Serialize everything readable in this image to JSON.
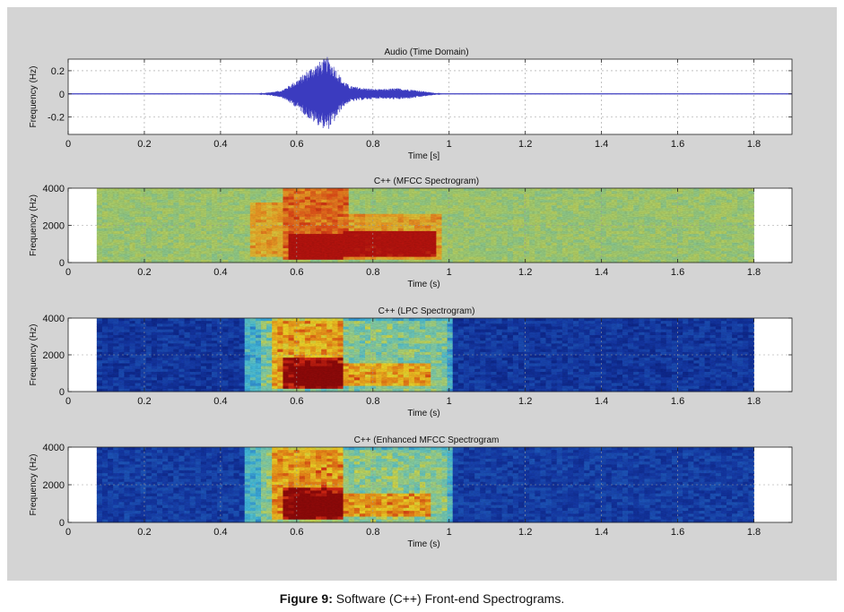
{
  "figure": {
    "caption_label": "Figure 9:",
    "caption_text": " Software (C++) Front-end Spectrograms."
  },
  "chart_data": [
    {
      "type": "line",
      "title": "Audio (Time Domain)",
      "xlabel": "Time [s]",
      "ylabel": "Frequency (Hz)",
      "xlim": [
        0,
        1.9
      ],
      "ylim": [
        -0.35,
        0.3
      ],
      "xticks": [
        "0",
        "0.2",
        "0.4",
        "0.6",
        "0.8",
        "1",
        "1.2",
        "1.4",
        "1.6",
        "1.8"
      ],
      "yticks": [
        "0.2",
        "0",
        "-0.2"
      ],
      "grid": true,
      "series": [
        {
          "color": "#3b3bbf",
          "envelope": [
            {
              "t": 0.5,
              "amp": 0.0
            },
            {
              "t": 0.52,
              "amp": 0.01
            },
            {
              "t": 0.56,
              "amp": 0.03
            },
            {
              "t": 0.6,
              "amp": 0.12
            },
            {
              "t": 0.62,
              "amp": 0.18
            },
            {
              "t": 0.64,
              "amp": 0.24
            },
            {
              "t": 0.66,
              "amp": 0.28
            },
            {
              "t": 0.68,
              "amp": 0.32
            },
            {
              "t": 0.7,
              "amp": 0.24
            },
            {
              "t": 0.72,
              "amp": 0.12
            },
            {
              "t": 0.74,
              "amp": 0.07
            },
            {
              "t": 0.78,
              "amp": 0.05
            },
            {
              "t": 0.82,
              "amp": 0.04
            },
            {
              "t": 0.86,
              "amp": 0.05
            },
            {
              "t": 0.9,
              "amp": 0.04
            },
            {
              "t": 0.94,
              "amp": 0.02
            },
            {
              "t": 0.98,
              "amp": 0.0
            }
          ]
        }
      ]
    },
    {
      "type": "heatmap",
      "title": "C++ (MFCC Spectrogram)",
      "xlabel": "Time (s)",
      "ylabel": "Frequency (Hz)",
      "xlim": [
        0,
        1.9
      ],
      "ylim": [
        0,
        4000
      ],
      "data_range": [
        0.075,
        1.8
      ],
      "xticks": [
        "0",
        "0.2",
        "0.4",
        "0.6",
        "0.8",
        "1",
        "1.2",
        "1.4",
        "1.6",
        "1.8"
      ],
      "yticks": [
        "4000",
        "2000",
        "0"
      ],
      "colormap": "mfcc",
      "background_level": 0.45,
      "energy_regions": [
        {
          "t0": 0.48,
          "t1": 0.56,
          "f0": 300,
          "f1": 3200,
          "level": 0.25
        },
        {
          "t0": 0.57,
          "t1": 0.73,
          "f0": 100,
          "f1": 4000,
          "level": 0.35
        },
        {
          "t0": 0.73,
          "t1": 0.98,
          "f0": 100,
          "f1": 2600,
          "level": 0.25
        },
        {
          "t0": 0.58,
          "t1": 0.72,
          "f0": 100,
          "f1": 1500,
          "level": 0.5
        },
        {
          "t0": 0.62,
          "t1": 0.69,
          "f0": 300,
          "f1": 1300,
          "level": 0.55
        },
        {
          "t0": 0.72,
          "t1": 0.97,
          "f0": 300,
          "f1": 1700,
          "level": 0.35
        },
        {
          "t0": 0.85,
          "t1": 0.96,
          "f0": 700,
          "f1": 1700,
          "level": 0.3
        }
      ]
    },
    {
      "type": "heatmap",
      "title": "C++ (LPC Spectrogram)",
      "xlabel": "Time (s)",
      "ylabel": "Frequency (Hz)",
      "xlim": [
        0,
        1.9
      ],
      "ylim": [
        0,
        4000
      ],
      "data_range": [
        0.075,
        1.8
      ],
      "xticks": [
        "0",
        "0.2",
        "0.4",
        "0.6",
        "0.8",
        "1",
        "1.2",
        "1.4",
        "1.6",
        "1.8"
      ],
      "yticks": [
        "4000",
        "2000",
        "0"
      ],
      "colormap": "jet",
      "background_level": 0.12,
      "energy_regions": [
        {
          "t0": 0.47,
          "t1": 1.01,
          "f0": 0,
          "f1": 4000,
          "level": 0.28
        },
        {
          "t0": 0.51,
          "t1": 0.99,
          "f0": 0,
          "f1": 3900,
          "level": 0.12
        },
        {
          "t0": 0.54,
          "t1": 0.72,
          "f0": 100,
          "f1": 4000,
          "level": 0.25
        },
        {
          "t0": 0.57,
          "t1": 0.72,
          "f0": 200,
          "f1": 1800,
          "level": 0.2
        },
        {
          "t0": 0.59,
          "t1": 0.72,
          "f0": 300,
          "f1": 1400,
          "level": 0.25
        },
        {
          "t0": 0.72,
          "t1": 0.95,
          "f0": 300,
          "f1": 1600,
          "level": 0.25
        }
      ]
    },
    {
      "type": "heatmap",
      "title": "C++ (Enhanced MFCC Spectrogram",
      "xlabel": "Time (s)",
      "ylabel": "Frequency (Hz)",
      "xlim": [
        0,
        1.9
      ],
      "ylim": [
        0,
        4000
      ],
      "data_range": [
        0.075,
        1.8
      ],
      "xticks": [
        "0",
        "0.2",
        "0.4",
        "0.6",
        "0.8",
        "1",
        "1.2",
        "1.4",
        "1.6",
        "1.8"
      ],
      "yticks": [
        "4000",
        "2000",
        "0"
      ],
      "colormap": "jet",
      "background_level": 0.14,
      "energy_regions": [
        {
          "t0": 0.47,
          "t1": 1.01,
          "f0": 0,
          "f1": 4000,
          "level": 0.28
        },
        {
          "t0": 0.51,
          "t1": 0.99,
          "f0": 0,
          "f1": 3900,
          "level": 0.12
        },
        {
          "t0": 0.54,
          "t1": 0.72,
          "f0": 100,
          "f1": 4000,
          "level": 0.25
        },
        {
          "t0": 0.57,
          "t1": 0.72,
          "f0": 200,
          "f1": 1800,
          "level": 0.2
        },
        {
          "t0": 0.59,
          "t1": 0.72,
          "f0": 300,
          "f1": 1400,
          "level": 0.25
        },
        {
          "t0": 0.72,
          "t1": 0.95,
          "f0": 300,
          "f1": 1600,
          "level": 0.25
        }
      ]
    }
  ]
}
